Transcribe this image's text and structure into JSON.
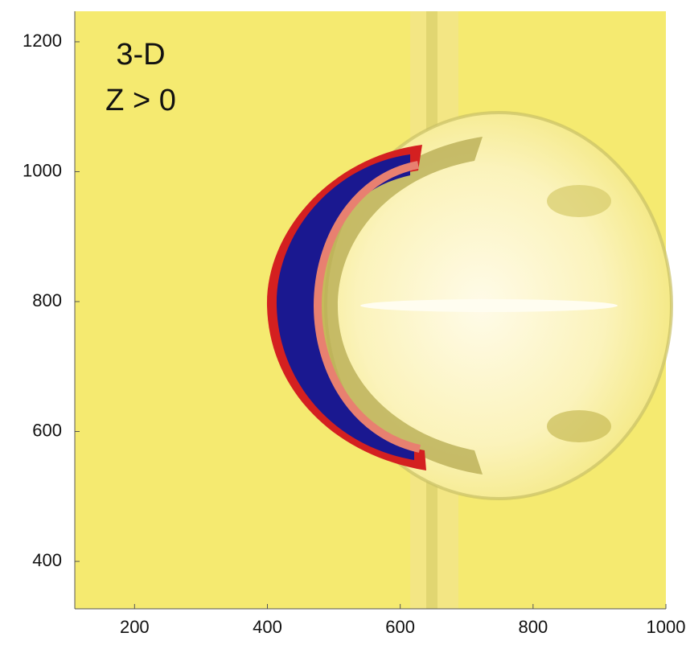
{
  "chart_data": {
    "type": "image",
    "annotations": [
      "3-D",
      "Z > 0"
    ],
    "xlim": [
      110,
      1000
    ],
    "xticks": [
      200,
      400,
      600,
      800,
      1000
    ],
    "ylim": [
      327,
      1247
    ],
    "yticks": [
      400,
      600,
      800,
      1000,
      1200
    ]
  }
}
